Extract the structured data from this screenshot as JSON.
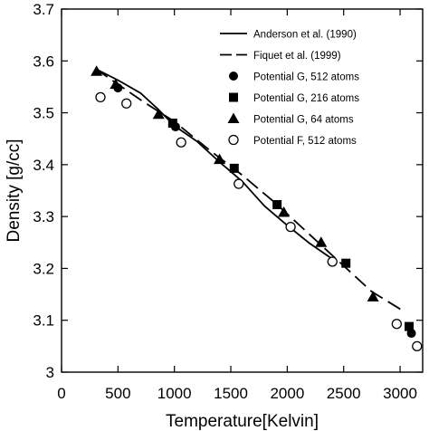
{
  "chart_data": {
    "type": "scatter",
    "title": "",
    "xlabel": "Temperature[Kelvin]",
    "ylabel": "Density [g/cc]",
    "xlim": [
      0,
      3200
    ],
    "ylim": [
      3.0,
      3.7
    ],
    "xticks": [
      "0",
      "500",
      "1000",
      "1500",
      "2000",
      "2500",
      "3000"
    ],
    "xtick_values": [
      0,
      500,
      1000,
      1500,
      2000,
      2500,
      3000
    ],
    "yticks": [
      "3",
      "3.1",
      "3.2",
      "3.3",
      "3.4",
      "3.5",
      "3.6",
      "3.7"
    ],
    "ytick_values": [
      3.0,
      3.1,
      3.2,
      3.3,
      3.4,
      3.5,
      3.6,
      3.7
    ],
    "grid": false,
    "legend_position": "top-right",
    "color": "#000000",
    "series": [
      {
        "name": "Anderson et al. (1990)",
        "kind": "line",
        "line_style": "solid",
        "x": [
          300,
          500,
          700,
          850,
          1000,
          1200,
          1400,
          1600,
          1800,
          2000,
          2200,
          2400
        ],
        "y": [
          3.585,
          3.563,
          3.538,
          3.508,
          3.475,
          3.445,
          3.405,
          3.368,
          3.32,
          3.283,
          3.248,
          3.218
        ]
      },
      {
        "name": "Fiquet et al. (1999)",
        "kind": "line",
        "line_style": "dashed",
        "x": [
          300,
          700,
          1000,
          1300,
          1600,
          1900,
          2200,
          2500,
          2750,
          3050
        ],
        "y": [
          3.585,
          3.525,
          3.483,
          3.43,
          3.38,
          3.325,
          3.265,
          3.205,
          3.155,
          3.115
        ]
      },
      {
        "name": "Potential G, 512 atoms",
        "kind": "marker",
        "marker": "circle-filled",
        "x": [
          500,
          1010,
          3100
        ],
        "y": [
          3.548,
          3.473,
          3.075
        ]
      },
      {
        "name": "Potential G, 216 atoms",
        "kind": "marker",
        "marker": "square-filled",
        "x": [
          985,
          1530,
          1910,
          2520,
          3080
        ],
        "y": [
          3.48,
          3.393,
          3.323,
          3.21,
          3.088
        ]
      },
      {
        "name": "Potential G, 64 atoms",
        "kind": "marker",
        "marker": "triangle-filled",
        "x": [
          310,
          480,
          860,
          1400,
          1970,
          2300,
          2760
        ],
        "y": [
          3.58,
          3.555,
          3.497,
          3.41,
          3.308,
          3.25,
          3.145
        ]
      },
      {
        "name": "Potential F, 512 atoms",
        "kind": "marker",
        "marker": "circle-open",
        "x": [
          345,
          575,
          1060,
          1570,
          2030,
          2400,
          2970,
          3150
        ],
        "y": [
          3.53,
          3.518,
          3.443,
          3.363,
          3.28,
          3.213,
          3.093,
          3.05
        ]
      }
    ]
  }
}
